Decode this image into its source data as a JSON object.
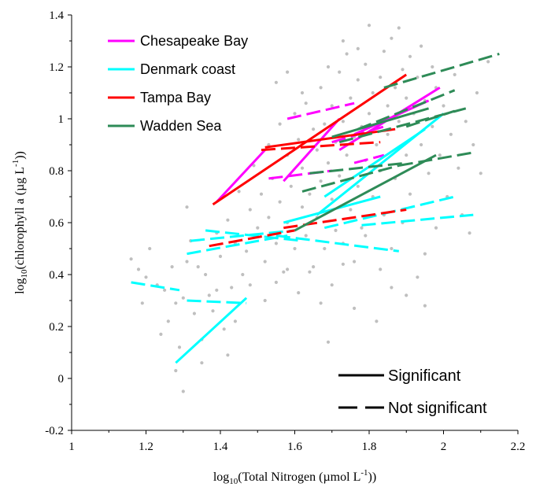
{
  "chart_data": {
    "type": "scatter",
    "xlabel": {
      "pre": "log",
      "sub": "10",
      "mid": "(Total Nitrogen (µmol L",
      "sup": "-1",
      "post": "))"
    },
    "ylabel": {
      "pre": "log",
      "sub": "10",
      "mid": "(chlorophyll a (µg L",
      "sup": "-1",
      "post": "))"
    },
    "xlim": [
      1,
      2.2
    ],
    "ylim": [
      -0.2,
      1.4
    ],
    "xticks": [
      1,
      1.2,
      1.4,
      1.6,
      1.8,
      2,
      2.2
    ],
    "xtick_labels": [
      "1",
      "1.2",
      "1.4",
      "1.6",
      "1.8",
      "2",
      "2.2"
    ],
    "yticks": [
      -0.2,
      0,
      0.2,
      0.4,
      0.6,
      0.8,
      1,
      1.2,
      1.4
    ],
    "ytick_labels": [
      "-0.2",
      "0",
      "0.2",
      "0.4",
      "0.6",
      "0.8",
      "1",
      "1.2",
      "1.4"
    ],
    "grid": false,
    "legend": {
      "placement": "top-left",
      "entries": [
        {
          "name": "Chesapeake Bay",
          "color": "#ff00ff"
        },
        {
          "name": "Denmark coast",
          "color": "#00ffff"
        },
        {
          "name": "Tampa Bay",
          "color": "#ff0000"
        },
        {
          "name": "Wadden Sea",
          "color": "#2e8b57"
        }
      ]
    },
    "line_styles": {
      "placement": "bottom-right",
      "entries": [
        {
          "label": "Significant",
          "style": "solid"
        },
        {
          "label": "Not significant",
          "style": "dashed"
        }
      ]
    },
    "background_points_color": "#bfbfbf",
    "background_points": [
      [
        1.16,
        0.46
      ],
      [
        1.18,
        0.42
      ],
      [
        1.19,
        0.29
      ],
      [
        1.2,
        0.39
      ],
      [
        1.21,
        0.5
      ],
      [
        1.23,
        0.36
      ],
      [
        1.24,
        0.17
      ],
      [
        1.25,
        0.34
      ],
      [
        1.26,
        0.22
      ],
      [
        1.27,
        0.43
      ],
      [
        1.28,
        0.29
      ],
      [
        1.28,
        0.03
      ],
      [
        1.29,
        0.12
      ],
      [
        1.3,
        0.31
      ],
      [
        1.3,
        -0.05
      ],
      [
        1.31,
        0.66
      ],
      [
        1.31,
        0.45
      ],
      [
        1.32,
        0.53
      ],
      [
        1.33,
        0.25
      ],
      [
        1.34,
        0.43
      ],
      [
        1.35,
        0.15
      ],
      [
        1.36,
        0.4
      ],
      [
        1.37,
        0.32
      ],
      [
        1.38,
        0.26
      ],
      [
        1.39,
        0.56
      ],
      [
        1.4,
        0.47
      ],
      [
        1.41,
        0.19
      ],
      [
        1.42,
        0.61
      ],
      [
        1.43,
        0.35
      ],
      [
        1.44,
        0.52
      ],
      [
        1.45,
        0.72
      ],
      [
        1.46,
        0.4
      ],
      [
        1.47,
        0.49
      ],
      [
        1.48,
        0.65
      ],
      [
        1.48,
        0.36
      ],
      [
        1.49,
        0.82
      ],
      [
        1.5,
        0.58
      ],
      [
        1.51,
        0.71
      ],
      [
        1.52,
        0.45
      ],
      [
        1.53,
        0.9
      ],
      [
        1.53,
        0.62
      ],
      [
        1.54,
        0.77
      ],
      [
        1.55,
        0.52
      ],
      [
        1.56,
        0.98
      ],
      [
        1.56,
        0.68
      ],
      [
        1.57,
        0.41
      ],
      [
        1.58,
        0.86
      ],
      [
        1.58,
        0.6
      ],
      [
        1.59,
        0.74
      ],
      [
        1.6,
        1.02
      ],
      [
        1.6,
        0.5
      ],
      [
        1.61,
        0.92
      ],
      [
        1.62,
        0.66
      ],
      [
        1.62,
        0.81
      ],
      [
        1.63,
        1.06
      ],
      [
        1.63,
        0.55
      ],
      [
        1.64,
        0.71
      ],
      [
        1.65,
        0.96
      ],
      [
        1.65,
        0.43
      ],
      [
        1.66,
        0.88
      ],
      [
        1.66,
        0.62
      ],
      [
        1.67,
        1.12
      ],
      [
        1.67,
        0.76
      ],
      [
        1.68,
        0.5
      ],
      [
        1.68,
        0.98
      ],
      [
        1.69,
        0.83
      ],
      [
        1.69,
        0.14
      ],
      [
        1.7,
        1.05
      ],
      [
        1.7,
        0.69
      ],
      [
        1.71,
        0.91
      ],
      [
        1.71,
        0.57
      ],
      [
        1.72,
        1.18
      ],
      [
        1.72,
        0.78
      ],
      [
        1.73,
        0.99
      ],
      [
        1.73,
        0.44
      ],
      [
        1.74,
        0.86
      ],
      [
        1.74,
        1.25
      ],
      [
        1.75,
        0.65
      ],
      [
        1.75,
        1.08
      ],
      [
        1.76,
        0.93
      ],
      [
        1.76,
        0.27
      ],
      [
        1.77,
        1.15
      ],
      [
        1.77,
        0.74
      ],
      [
        1.78,
        0.97
      ],
      [
        1.78,
        0.58
      ],
      [
        1.79,
        1.21
      ],
      [
        1.79,
        0.84
      ],
      [
        1.8,
        1.36
      ],
      [
        1.8,
        1.02
      ],
      [
        1.81,
        0.7
      ],
      [
        1.81,
        1.1
      ],
      [
        1.82,
        0.9
      ],
      [
        1.82,
        0.22
      ],
      [
        1.83,
        1.16
      ],
      [
        1.83,
        0.8
      ],
      [
        1.84,
        1.26
      ],
      [
        1.84,
        0.63
      ],
      [
        1.85,
        1.05
      ],
      [
        1.85,
        0.94
      ],
      [
        1.86,
        1.31
      ],
      [
        1.86,
        0.5
      ],
      [
        1.87,
        1.12
      ],
      [
        1.87,
        0.77
      ],
      [
        1.88,
        1.35
      ],
      [
        1.88,
        0.99
      ],
      [
        1.89,
        1.19
      ],
      [
        1.89,
        0.6
      ],
      [
        1.9,
        1.08
      ],
      [
        1.9,
        0.86
      ],
      [
        1.91,
        1.24
      ],
      [
        1.91,
        0.71
      ],
      [
        1.92,
        1.02
      ],
      [
        1.93,
        1.16
      ],
      [
        1.93,
        0.39
      ],
      [
        1.94,
        0.9
      ],
      [
        1.94,
        1.28
      ],
      [
        1.95,
        1.07
      ],
      [
        1.95,
        0.28
      ],
      [
        1.96,
        0.79
      ],
      [
        1.97,
        1.2
      ],
      [
        1.97,
        0.97
      ],
      [
        1.98,
        1.12
      ],
      [
        1.98,
        0.58
      ],
      [
        1.99,
        0.86
      ],
      [
        2.0,
        1.05
      ],
      [
        2.01,
        0.7
      ],
      [
        2.02,
        0.94
      ],
      [
        2.03,
        1.17
      ],
      [
        2.04,
        0.81
      ],
      [
        2.05,
        0.63
      ],
      [
        2.06,
        0.99
      ],
      [
        2.07,
        0.56
      ],
      [
        2.08,
        0.9
      ],
      [
        2.09,
        1.1
      ],
      [
        2.1,
        0.79
      ],
      [
        2.12,
        1.22
      ],
      [
        1.44,
        0.22
      ],
      [
        1.42,
        0.09
      ],
      [
        1.39,
        0.34
      ],
      [
        1.35,
        0.06
      ],
      [
        1.52,
        0.3
      ],
      [
        1.55,
        0.37
      ],
      [
        1.58,
        0.42
      ],
      [
        1.61,
        0.33
      ],
      [
        1.64,
        0.41
      ],
      [
        1.67,
        0.29
      ],
      [
        1.7,
        0.36
      ],
      [
        1.73,
        0.52
      ],
      [
        1.76,
        0.45
      ],
      [
        1.79,
        0.55
      ],
      [
        1.83,
        0.42
      ],
      [
        1.86,
        0.35
      ],
      [
        1.9,
        0.32
      ],
      [
        1.95,
        0.48
      ],
      [
        1.62,
        1.1
      ],
      [
        1.58,
        1.18
      ],
      [
        1.55,
        1.14
      ],
      [
        1.69,
        1.2
      ],
      [
        1.73,
        1.3
      ],
      [
        1.77,
        1.27
      ]
    ],
    "lines": [
      {
        "series": "Chesapeake Bay",
        "significant": true,
        "x": [
          1.39,
          1.52
        ],
        "y": [
          0.68,
          0.88
        ]
      },
      {
        "series": "Chesapeake Bay",
        "significant": true,
        "x": [
          1.57,
          1.72
        ],
        "y": [
          0.76,
          1.0
        ]
      },
      {
        "series": "Chesapeake Bay",
        "significant": true,
        "x": [
          1.72,
          1.99
        ],
        "y": [
          0.88,
          1.12
        ]
      },
      {
        "series": "Chesapeake Bay",
        "significant": true,
        "x": [
          1.76,
          1.96
        ],
        "y": [
          0.94,
          1.07
        ]
      },
      {
        "series": "Chesapeake Bay",
        "significant": false,
        "x": [
          1.58,
          1.76
        ],
        "y": [
          1.0,
          1.06
        ]
      },
      {
        "series": "Chesapeake Bay",
        "significant": false,
        "x": [
          1.53,
          1.7
        ],
        "y": [
          0.77,
          0.8
        ]
      },
      {
        "series": "Chesapeake Bay",
        "significant": false,
        "x": [
          1.7,
          1.84
        ],
        "y": [
          0.91,
          0.97
        ]
      },
      {
        "series": "Chesapeake Bay",
        "significant": false,
        "x": [
          1.76,
          1.84
        ],
        "y": [
          0.83,
          0.86
        ]
      },
      {
        "series": "Denmark coast",
        "significant": true,
        "x": [
          1.28,
          1.47
        ],
        "y": [
          0.06,
          0.31
        ]
      },
      {
        "series": "Denmark coast",
        "significant": true,
        "x": [
          1.66,
          2.0
        ],
        "y": [
          0.63,
          1.02
        ]
      },
      {
        "series": "Denmark coast",
        "significant": true,
        "x": [
          1.68,
          1.95
        ],
        "y": [
          0.7,
          0.96
        ]
      },
      {
        "series": "Denmark coast",
        "significant": true,
        "x": [
          1.57,
          1.83
        ],
        "y": [
          0.6,
          0.7
        ]
      },
      {
        "series": "Denmark coast",
        "significant": false,
        "x": [
          1.16,
          1.29
        ],
        "y": [
          0.37,
          0.34
        ]
      },
      {
        "series": "Denmark coast",
        "significant": false,
        "x": [
          1.31,
          1.47
        ],
        "y": [
          0.3,
          0.29
        ]
      },
      {
        "series": "Denmark coast",
        "significant": false,
        "x": [
          1.31,
          1.58
        ],
        "y": [
          0.48,
          0.55
        ]
      },
      {
        "series": "Denmark coast",
        "significant": false,
        "x": [
          1.32,
          1.6
        ],
        "y": [
          0.53,
          0.57
        ]
      },
      {
        "series": "Denmark coast",
        "significant": false,
        "x": [
          1.36,
          1.62
        ],
        "y": [
          0.57,
          0.53
        ]
      },
      {
        "series": "Denmark coast",
        "significant": false,
        "x": [
          1.55,
          1.88
        ],
        "y": [
          0.55,
          0.49
        ]
      },
      {
        "series": "Denmark coast",
        "significant": false,
        "x": [
          1.68,
          2.03
        ],
        "y": [
          0.58,
          0.7
        ]
      },
      {
        "series": "Denmark coast",
        "significant": false,
        "x": [
          1.78,
          2.08
        ],
        "y": [
          0.59,
          0.63
        ]
      },
      {
        "series": "Tampa Bay",
        "significant": true,
        "x": [
          1.38,
          1.9
        ],
        "y": [
          0.67,
          1.17
        ]
      },
      {
        "series": "Tampa Bay",
        "significant": true,
        "x": [
          1.52,
          1.87
        ],
        "y": [
          0.89,
          0.96
        ]
      },
      {
        "series": "Tampa Bay",
        "significant": false,
        "x": [
          1.37,
          1.6
        ],
        "y": [
          0.51,
          0.57
        ]
      },
      {
        "series": "Tampa Bay",
        "significant": false,
        "x": [
          1.57,
          1.9
        ],
        "y": [
          0.58,
          0.65
        ]
      },
      {
        "series": "Tampa Bay",
        "significant": false,
        "x": [
          1.51,
          1.83
        ],
        "y": [
          0.88,
          0.91
        ]
      },
      {
        "series": "Wadden Sea",
        "significant": true,
        "x": [
          1.6,
          1.98
        ],
        "y": [
          0.57,
          0.86
        ]
      },
      {
        "series": "Wadden Sea",
        "significant": true,
        "x": [
          1.7,
          1.96
        ],
        "y": [
          0.93,
          1.04
        ]
      },
      {
        "series": "Wadden Sea",
        "significant": false,
        "x": [
          1.84,
          2.15
        ],
        "y": [
          1.12,
          1.25
        ]
      },
      {
        "series": "Wadden Sea",
        "significant": false,
        "x": [
          1.77,
          2.03
        ],
        "y": [
          0.96,
          1.11
        ]
      },
      {
        "series": "Wadden Sea",
        "significant": false,
        "x": [
          1.9,
          2.03
        ],
        "y": [
          0.97,
          1.03
        ]
      },
      {
        "series": "Wadden Sea",
        "significant": false,
        "x": [
          1.72,
          2.06
        ],
        "y": [
          0.91,
          1.04
        ]
      },
      {
        "series": "Wadden Sea",
        "significant": false,
        "x": [
          1.64,
          1.9
        ],
        "y": [
          0.79,
          0.83
        ]
      },
      {
        "series": "Wadden Sea",
        "significant": false,
        "x": [
          1.62,
          1.88
        ],
        "y": [
          0.72,
          0.82
        ]
      },
      {
        "series": "Wadden Sea",
        "significant": false,
        "x": [
          1.88,
          2.08
        ],
        "y": [
          0.82,
          0.87
        ]
      }
    ]
  }
}
